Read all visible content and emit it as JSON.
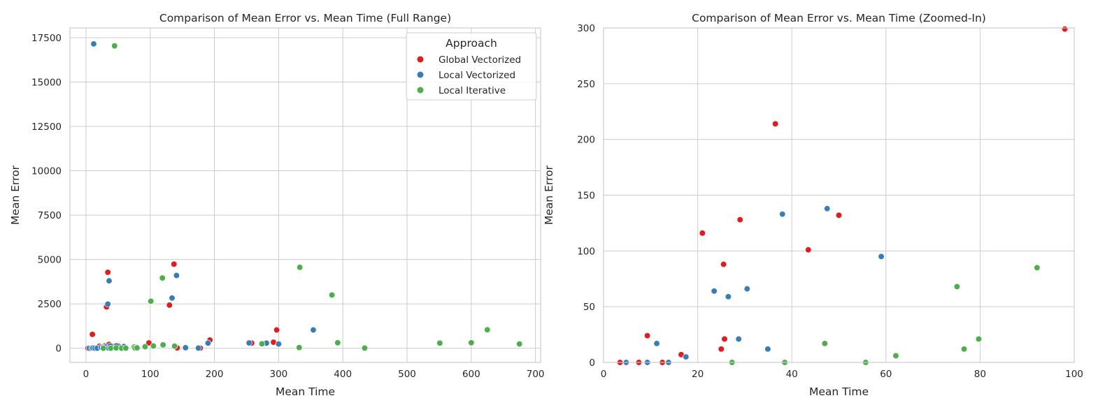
{
  "chart_data": [
    {
      "type": "scatter",
      "title": "Comparison of Mean Error vs. Mean Time (Full Range)",
      "xlabel": "Mean Time",
      "ylabel": "Mean Error",
      "xlim": [
        -25,
        708
      ],
      "ylim": [
        -800,
        18050
      ],
      "xticks": [
        0,
        100,
        200,
        300,
        400,
        500,
        600,
        700
      ],
      "yticks": [
        0,
        2500,
        5000,
        7500,
        10000,
        12500,
        15000,
        17500
      ],
      "xtick_labels": [
        "0",
        "100",
        "200",
        "300",
        "400",
        "500",
        "600",
        "700"
      ],
      "ytick_labels": [
        "0",
        "2500",
        "5000",
        "7500",
        "10000",
        "12500",
        "15000",
        "17500"
      ],
      "grid": true,
      "legend": {
        "title": "Approach",
        "position": "top-right",
        "entries": [
          "Global Vectorized",
          "Local Vectorized",
          "Local Iterative"
        ]
      },
      "series": [
        {
          "name": "Global Vectorized",
          "color": "#e41a1c",
          "points": [
            [
              3,
              0
            ],
            [
              8,
              0
            ],
            [
              10,
              780
            ],
            [
              13,
              0
            ],
            [
              16,
              5
            ],
            [
              21,
              116
            ],
            [
              25,
              13
            ],
            [
              25.5,
              88
            ],
            [
              26,
              22
            ],
            [
              29,
              128
            ],
            [
              32,
              2330
            ],
            [
              34,
              4280
            ],
            [
              36,
              214
            ],
            [
              43,
              102
            ],
            [
              50,
              132
            ],
            [
              98,
              299
            ],
            [
              130,
              2430
            ],
            [
              137,
              4740
            ],
            [
              142,
              20
            ],
            [
              178,
              10
            ],
            [
              193,
              460
            ],
            [
              258,
              290
            ],
            [
              292,
              340
            ],
            [
              297,
              1030
            ]
          ]
        },
        {
          "name": "Local Vectorized",
          "color": "#377eb8",
          "points": [
            [
              5,
              0
            ],
            [
              9,
              0
            ],
            [
              11,
              17
            ],
            [
              12,
              17150
            ],
            [
              14,
              0
            ],
            [
              17.5,
              5
            ],
            [
              23.5,
              64
            ],
            [
              26.5,
              59
            ],
            [
              28.5,
              21
            ],
            [
              30.5,
              66
            ],
            [
              35,
              12
            ],
            [
              34,
              2490
            ],
            [
              36,
              3800
            ],
            [
              38,
              133
            ],
            [
              47.5,
              138
            ],
            [
              59,
              95
            ],
            [
              120,
              200
            ],
            [
              134,
              2830
            ],
            [
              141,
              4100
            ],
            [
              155,
              30
            ],
            [
              175,
              10
            ],
            [
              190,
              290
            ],
            [
              254,
              300
            ],
            [
              281,
              290
            ],
            [
              300,
              240
            ],
            [
              354,
              1030
            ]
          ]
        },
        {
          "name": "Local Iterative",
          "color": "#4daf4a",
          "points": [
            [
              27,
              0
            ],
            [
              38.5,
              0
            ],
            [
              44.5,
              17040
            ],
            [
              47,
              17
            ],
            [
              55.5,
              0
            ],
            [
              62,
              6
            ],
            [
              75,
              68
            ],
            [
              76.5,
              12
            ],
            [
              79.5,
              22
            ],
            [
              92,
              85
            ],
            [
              101,
              2650
            ],
            [
              105,
              130
            ],
            [
              119,
              3960
            ],
            [
              120,
              190
            ],
            [
              138,
              120
            ],
            [
              274,
              250
            ],
            [
              332,
              40
            ],
            [
              333,
              4560
            ],
            [
              383,
              3000
            ],
            [
              392,
              310
            ],
            [
              434,
              10
            ],
            [
              551,
              290
            ],
            [
              600,
              310
            ],
            [
              625,
              1040
            ],
            [
              675,
              240
            ]
          ]
        }
      ]
    },
    {
      "type": "scatter",
      "title": "Comparison of Mean Error vs. Mean Time (Zoomed-In)",
      "xlabel": "Mean Time",
      "ylabel": "Mean Error",
      "xlim": [
        0,
        100
      ],
      "ylim": [
        0,
        300
      ],
      "xticks": [
        0,
        20,
        40,
        60,
        80,
        100
      ],
      "yticks": [
        0,
        50,
        100,
        150,
        200,
        250,
        300
      ],
      "xtick_labels": [
        "0",
        "20",
        "40",
        "60",
        "80",
        "100"
      ],
      "ytick_labels": [
        "0",
        "50",
        "100",
        "150",
        "200",
        "250",
        "300"
      ],
      "grid": true,
      "series": [
        {
          "name": "Global Vectorized",
          "color": "#e41a1c",
          "points": [
            [
              3.5,
              0
            ],
            [
              7.5,
              0
            ],
            [
              9.3,
              24
            ],
            [
              12.5,
              0
            ],
            [
              16.5,
              7
            ],
            [
              21,
              116
            ],
            [
              25,
              12
            ],
            [
              25.5,
              88
            ],
            [
              25.7,
              21
            ],
            [
              29,
              128
            ],
            [
              36.5,
              214
            ],
            [
              43.5,
              101
            ],
            [
              50,
              132
            ],
            [
              98,
              299
            ]
          ]
        },
        {
          "name": "Local Vectorized",
          "color": "#377eb8",
          "points": [
            [
              4.8,
              0
            ],
            [
              9.3,
              0
            ],
            [
              11.3,
              17
            ],
            [
              13.8,
              0
            ],
            [
              17.5,
              5
            ],
            [
              23.5,
              64
            ],
            [
              26.5,
              59
            ],
            [
              28.7,
              21
            ],
            [
              30.5,
              66
            ],
            [
              34.9,
              12
            ],
            [
              38,
              133
            ],
            [
              47.5,
              138
            ],
            [
              59,
              95
            ]
          ]
        },
        {
          "name": "Local Iterative",
          "color": "#4daf4a",
          "points": [
            [
              27.3,
              0
            ],
            [
              38.5,
              0
            ],
            [
              47,
              17
            ],
            [
              55.7,
              0
            ],
            [
              62.1,
              6
            ],
            [
              75.1,
              68
            ],
            [
              76.6,
              12
            ],
            [
              79.7,
              21
            ],
            [
              92.1,
              85
            ]
          ]
        }
      ]
    }
  ]
}
